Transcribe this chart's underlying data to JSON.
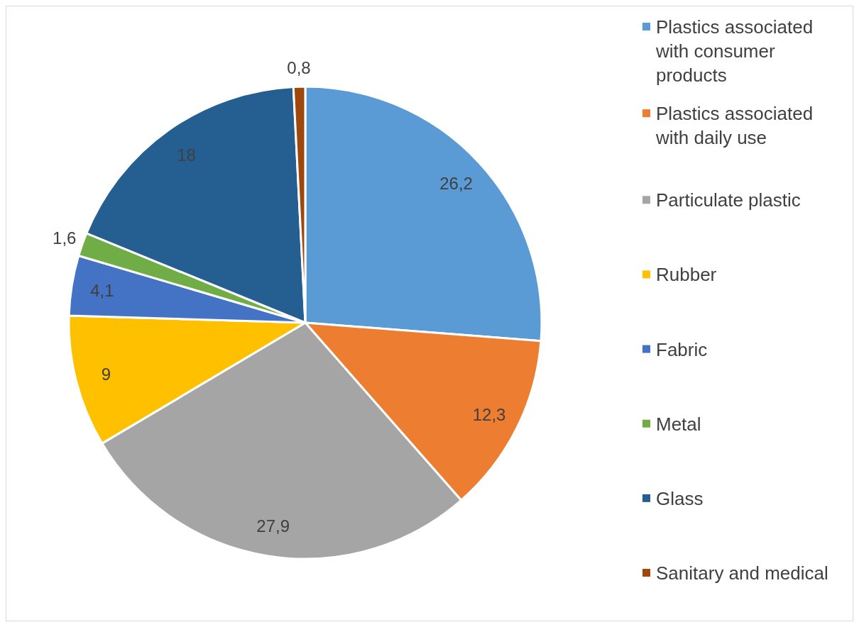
{
  "chart_data": {
    "type": "pie",
    "categories": [
      "Plastics associated with consumer products",
      "Plastics associated with daily use",
      "Particulate plastic",
      "Rubber",
      "Fabric",
      "Metal",
      "Glass",
      "Sanitary and medical"
    ],
    "values": [
      26.2,
      12.3,
      27.9,
      9,
      4.1,
      1.6,
      18,
      0.8
    ],
    "value_labels": [
      "26,2",
      "12,3",
      "27,9",
      "9",
      "4,1",
      "1,6",
      "18",
      "0,8"
    ],
    "colors": [
      "#5b9bd5",
      "#ed7d31",
      "#a5a5a5",
      "#ffc000",
      "#4472c4",
      "#70ad47",
      "#255e91",
      "#9e480e"
    ],
    "legend": "right"
  }
}
